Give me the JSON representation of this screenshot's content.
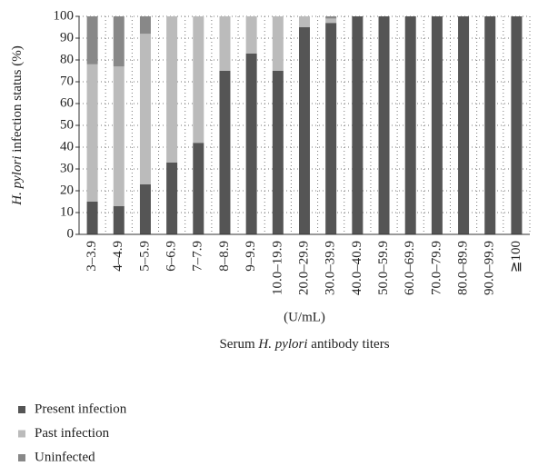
{
  "chart_data": {
    "type": "stacked_bar",
    "ylabel": [
      {
        "text": "H. pylori",
        "italic": true
      },
      {
        "text": " infection status (%)",
        "italic": false
      }
    ],
    "unit_label": "(U/mL)",
    "xlabel": [
      {
        "text": "Serum ",
        "italic": false
      },
      {
        "text": "H. pylori",
        "italic": true
      },
      {
        "text": " antibody titers",
        "italic": false
      }
    ],
    "categories": [
      "3–3.9",
      "4–4.9",
      "5–5.9",
      "6–6.9",
      "7–7.9",
      "8–8.9",
      "9–9.9",
      "10.0–19.9",
      "20.0–29.9",
      "30.0–39.9",
      "40.0–40.9",
      "50.0–59.9",
      "60.0–69.9",
      "70.0–79.9",
      "80.0–89.9",
      "90.0–99.9",
      "≧100"
    ],
    "series": [
      {
        "name": "Present infection",
        "color": "#555555",
        "values": [
          15,
          13,
          23,
          33,
          42,
          75,
          83,
          75,
          95,
          97,
          100,
          100,
          100,
          100,
          100,
          100,
          100
        ]
      },
      {
        "name": "Past infection",
        "color": "#bbbbbb",
        "values": [
          63,
          64,
          69,
          67,
          58,
          25,
          17,
          25,
          5,
          2,
          0,
          0,
          0,
          0,
          0,
          0,
          0
        ]
      },
      {
        "name": "Uninfected",
        "color": "#888888",
        "values": [
          22,
          23,
          8,
          0,
          0,
          0,
          0,
          0,
          0,
          1,
          0,
          0,
          0,
          0,
          0,
          0,
          0
        ]
      }
    ],
    "ylim": [
      0,
      100
    ],
    "yticks": [
      0,
      10,
      20,
      30,
      40,
      50,
      60,
      70,
      80,
      90,
      100
    ],
    "grid": true,
    "legend": "bottom-left"
  }
}
